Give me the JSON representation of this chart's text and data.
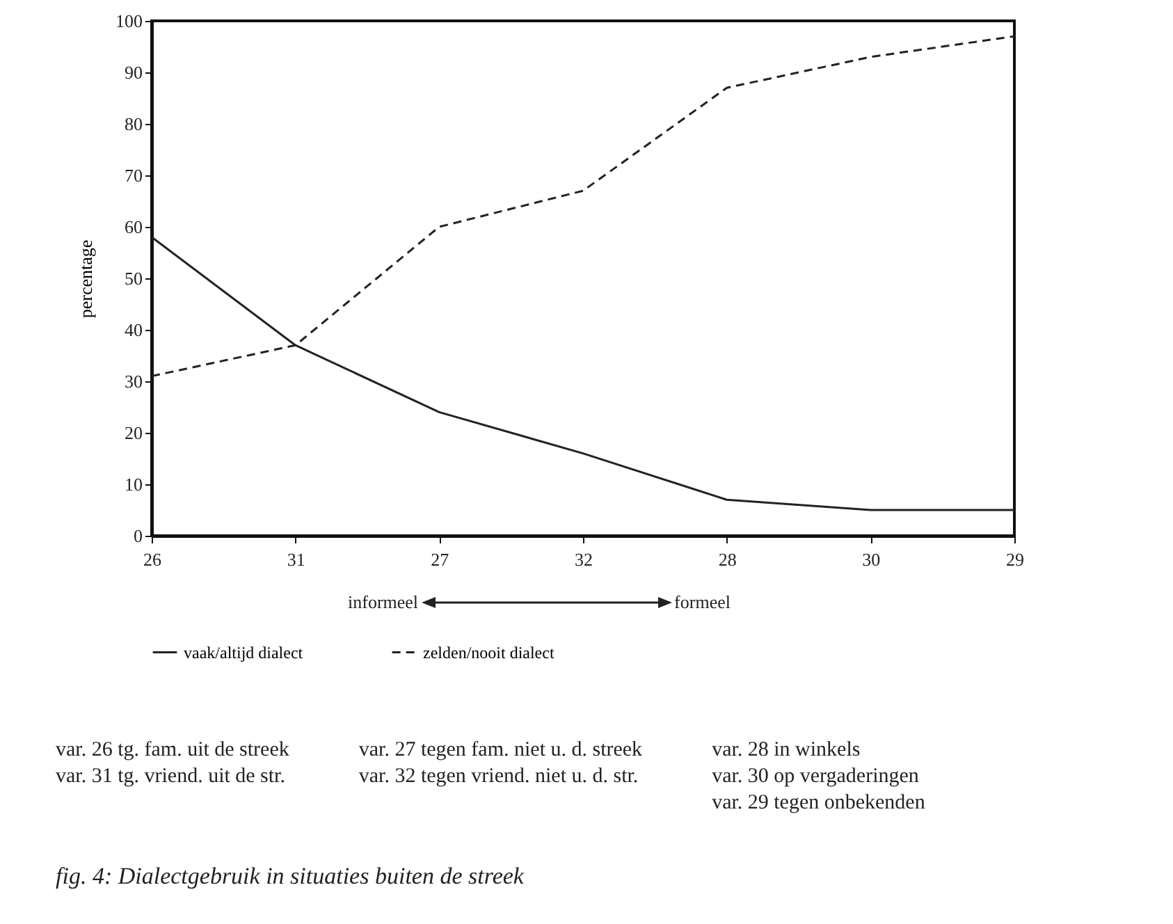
{
  "chart_data": {
    "type": "line",
    "ylabel": "percentage",
    "categories": [
      "26",
      "31",
      "27",
      "32",
      "28",
      "30",
      "29"
    ],
    "series": [
      {
        "name": "vaak/altijd dialect",
        "color": "#222222",
        "line_style": "solid",
        "values": [
          58,
          37,
          24,
          16,
          7,
          5,
          5
        ]
      },
      {
        "name": "zelden/nooit dialect",
        "color": "#222222",
        "line_style": "dashed",
        "values": [
          31,
          37,
          60,
          67,
          87,
          93,
          97
        ]
      }
    ],
    "ylim": [
      0,
      100
    ],
    "yticks": [
      0,
      10,
      20,
      30,
      40,
      50,
      60,
      70,
      80,
      90,
      100
    ],
    "grid": false,
    "legend": "bottom",
    "marker": "none",
    "annotations": [
      "informeel",
      "formeel",
      "var. 26 tg. fam. uit de streek",
      "var. 31 tg. vriend. uit de str.",
      "var. 27 tegen fam. niet u. d. streek",
      "var. 32 tegen vriend. niet u. d. str.",
      "var. 28 in winkels",
      "var. 30 op vergaderingen",
      "var. 29 tegen onbekenden",
      "fig. 4: Dialectgebruik in situaties buiten de streek"
    ]
  }
}
